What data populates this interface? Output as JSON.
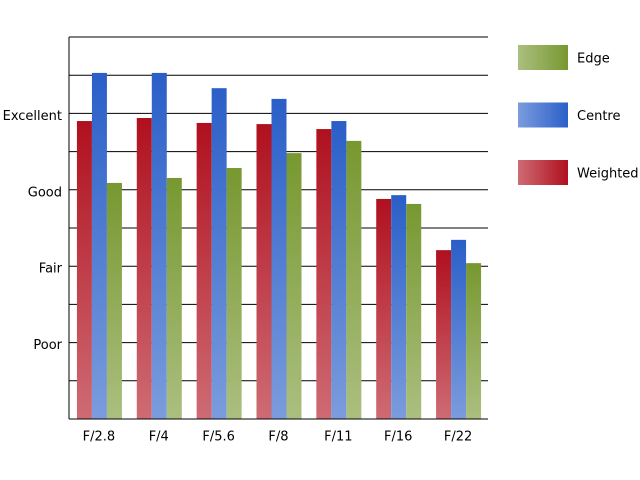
{
  "chart_data": {
    "type": "bar",
    "categories": [
      "F/2.8",
      "F/4",
      "F/5.6",
      "F/8",
      "F/11",
      "F/16",
      "F/22"
    ],
    "series": [
      {
        "name": "Weighted",
        "color": "#b0101e",
        "values": [
          7.8,
          7.88,
          7.75,
          7.72,
          7.59,
          5.76,
          4.42
        ]
      },
      {
        "name": "Centre",
        "color": "#2a5fc8",
        "values": [
          9.06,
          9.06,
          8.66,
          8.38,
          7.8,
          5.86,
          4.69
        ]
      },
      {
        "name": "Edge",
        "color": "#779830",
        "values": [
          6.18,
          6.31,
          6.57,
          6.96,
          7.28,
          5.63,
          4.08
        ]
      }
    ],
    "ylim": [
      0,
      10
    ],
    "yticks": [
      {
        "value": 2,
        "label": "Poor"
      },
      {
        "value": 4,
        "label": "Fair"
      },
      {
        "value": 6,
        "label": "Good"
      },
      {
        "value": 8,
        "label": "Excellent"
      }
    ],
    "minor_yticks": [
      1,
      3,
      5,
      7,
      9,
      10
    ],
    "grid": true,
    "legend": "right"
  }
}
